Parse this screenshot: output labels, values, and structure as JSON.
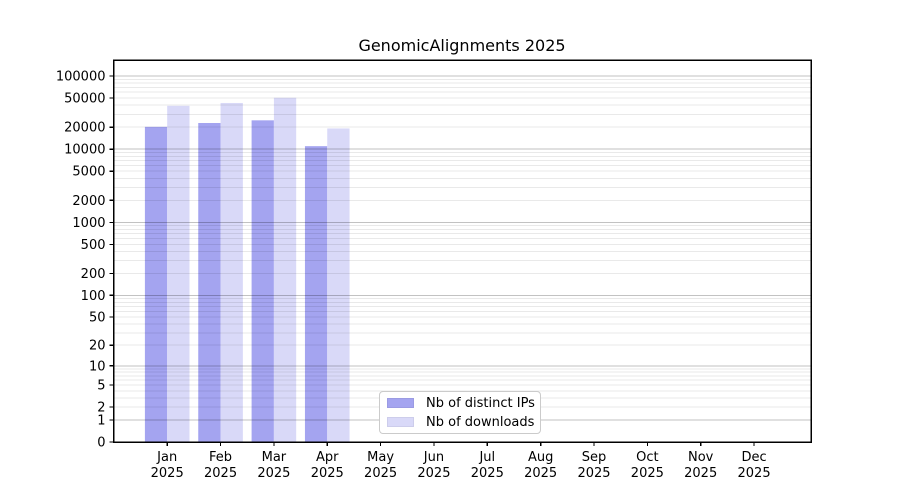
{
  "chart_data": {
    "type": "bar",
    "title": "GenomicAlignments 2025",
    "xlabel": "",
    "ylabel": "",
    "yscale": "log-like (y proportional to log10(1+value), 0 at baseline)",
    "grid": true,
    "legend_position": "bottom-center inside plot",
    "ylim": [
      0,
      165000
    ],
    "categories": [
      {
        "month": "Jan",
        "year": "2025"
      },
      {
        "month": "Feb",
        "year": "2025"
      },
      {
        "month": "Mar",
        "year": "2025"
      },
      {
        "month": "Apr",
        "year": "2025"
      },
      {
        "month": "May",
        "year": "2025"
      },
      {
        "month": "Jun",
        "year": "2025"
      },
      {
        "month": "Jul",
        "year": "2025"
      },
      {
        "month": "Aug",
        "year": "2025"
      },
      {
        "month": "Sep",
        "year": "2025"
      },
      {
        "month": "Oct",
        "year": "2025"
      },
      {
        "month": "Nov",
        "year": "2025"
      },
      {
        "month": "Dec",
        "year": "2025"
      }
    ],
    "series": [
      {
        "name": "Nb of distinct IPs",
        "color": "#a4a4f0",
        "values": [
          20200,
          22800,
          24800,
          11000,
          null,
          null,
          null,
          null,
          null,
          null,
          null,
          null
        ]
      },
      {
        "name": "Nb of downloads",
        "color": "#d9d9f8",
        "values": [
          39200,
          42800,
          50400,
          19200,
          null,
          null,
          null,
          null,
          null,
          null,
          null,
          null
        ]
      }
    ],
    "yticks": [
      {
        "label": "100000",
        "value": 100000
      },
      {
        "label": "50000",
        "value": 50000
      },
      {
        "label": "20000",
        "value": 20000
      },
      {
        "label": "10000",
        "value": 10000
      },
      {
        "label": "5000",
        "value": 5000
      },
      {
        "label": "2000",
        "value": 2000
      },
      {
        "label": "1000",
        "value": 1000
      },
      {
        "label": "500",
        "value": 500
      },
      {
        "label": "200",
        "value": 200
      },
      {
        "label": "100",
        "value": 100
      },
      {
        "label": "50",
        "value": 50
      },
      {
        "label": "20",
        "value": 20
      },
      {
        "label": "10",
        "value": 10
      },
      {
        "label": "5",
        "value": 5
      },
      {
        "label": "2",
        "value": 2
      },
      {
        "label": "1",
        "value": 1
      },
      {
        "label": "0",
        "value": 0
      }
    ]
  }
}
